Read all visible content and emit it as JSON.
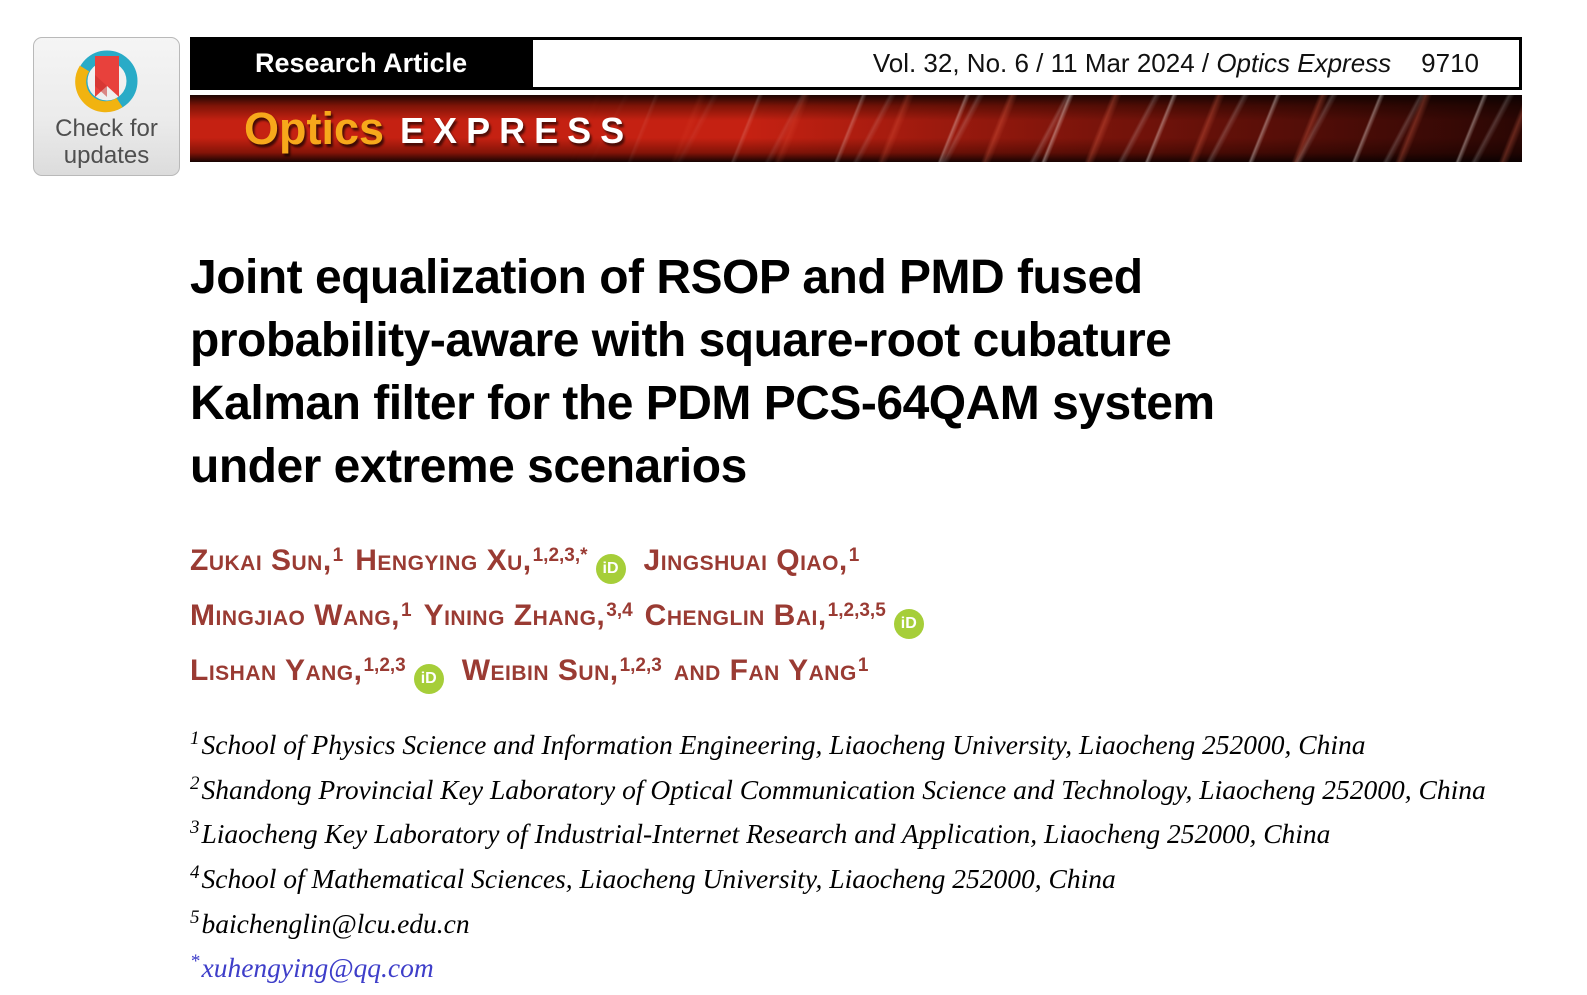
{
  "badge": {
    "line1": "Check for",
    "line2": "updates"
  },
  "header": {
    "article_type": "Research Article",
    "citation": "Vol. 32, No. 6 / 11 Mar 2024 / ",
    "journal": "Optics Express",
    "page": "9710"
  },
  "banner": {
    "word1": "Optics",
    "word2": "EXPRESS"
  },
  "title_lines": [
    "Joint equalization of RSOP and PMD fused",
    "probability-aware with square-root cubature",
    "Kalman filter for the PDM PCS-64QAM system",
    "under extreme scenarios"
  ],
  "orcid_label": "iD",
  "author_lines": [
    [
      {
        "name": "Zukai Sun,",
        "sup": "1",
        "orcid": false
      },
      {
        "name": "Hengying Xu,",
        "sup": "1,2,3,*",
        "orcid": true
      },
      {
        "name": "Jingshuai Qiao,",
        "sup": "1",
        "orcid": false
      }
    ],
    [
      {
        "name": "Mingjiao Wang,",
        "sup": "1",
        "orcid": false
      },
      {
        "name": "Yining Zhang,",
        "sup": "3,4",
        "orcid": false
      },
      {
        "name": "Chenglin Bai,",
        "sup": "1,2,3,5",
        "orcid": true
      }
    ],
    [
      {
        "name": "Lishan Yang,",
        "sup": "1,2,3",
        "orcid": true
      },
      {
        "name": "Weibin Sun,",
        "sup": "1,2,3",
        "orcid": false
      },
      {
        "name": "and Fan Yang",
        "sup": "1",
        "orcid": false
      }
    ]
  ],
  "affiliations": [
    {
      "marker": "1",
      "text": "School of Physics Science and Information Engineering, Liaocheng University, Liaocheng 252000, China",
      "link": false
    },
    {
      "marker": "2",
      "text": "Shandong Provincial Key Laboratory of Optical Communication Science and Technology, Liaocheng 252000, China",
      "link": false
    },
    {
      "marker": "3",
      "text": "Liaocheng Key Laboratory of Industrial-Internet Research and Application, Liaocheng 252000, China",
      "link": false
    },
    {
      "marker": "4",
      "text": "School of Mathematical Sciences, Liaocheng University, Liaocheng 252000, China",
      "link": false
    },
    {
      "marker": "5",
      "text": "baichenglin@lcu.edu.cn",
      "link": false
    },
    {
      "marker": "*",
      "text": "xuhengying@qq.com",
      "link": true
    }
  ],
  "colors": {
    "author": "#9a3b33",
    "orcid_green": "#a6ce39",
    "banner_red": "#c52112",
    "brand_yellow": "#f7a81b",
    "link_blue": "#3e3ec9",
    "badge_teal": "#29abc7",
    "badge_yellow": "#f1b310",
    "badge_red": "#e8413c"
  }
}
